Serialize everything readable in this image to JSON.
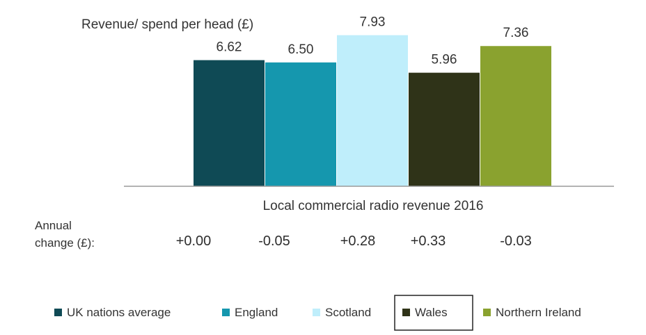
{
  "chart_data": {
    "type": "bar",
    "title": "Revenue/ spend per head (£)",
    "xlabel": "Local commercial radio revenue 2016",
    "ylabel": "",
    "ylim": [
      0,
      8.5
    ],
    "grid": false,
    "legend_position": "bottom",
    "categories": [
      "UK nations average",
      "England",
      "Scotland",
      "Wales",
      "Northern Ireland"
    ],
    "values": [
      6.62,
      6.5,
      7.93,
      5.96,
      7.36
    ],
    "value_labels": [
      "6.62",
      "6.50",
      "7.93",
      "5.96",
      "7.36"
    ],
    "colors": [
      "#0f4a55",
      "#1597ae",
      "#bfeefb",
      "#2f3318",
      "#8aa22f"
    ],
    "annual_change": {
      "label_lines": [
        "Annual",
        "change (£):"
      ],
      "values": [
        "+0.00",
        "-0.05",
        "+0.28",
        "+0.33",
        "-0.03"
      ]
    },
    "legend": {
      "entries": [
        "UK nations average",
        "England",
        "Scotland",
        "Wales",
        "Northern Ireland"
      ],
      "highlighted": "Wales"
    }
  }
}
